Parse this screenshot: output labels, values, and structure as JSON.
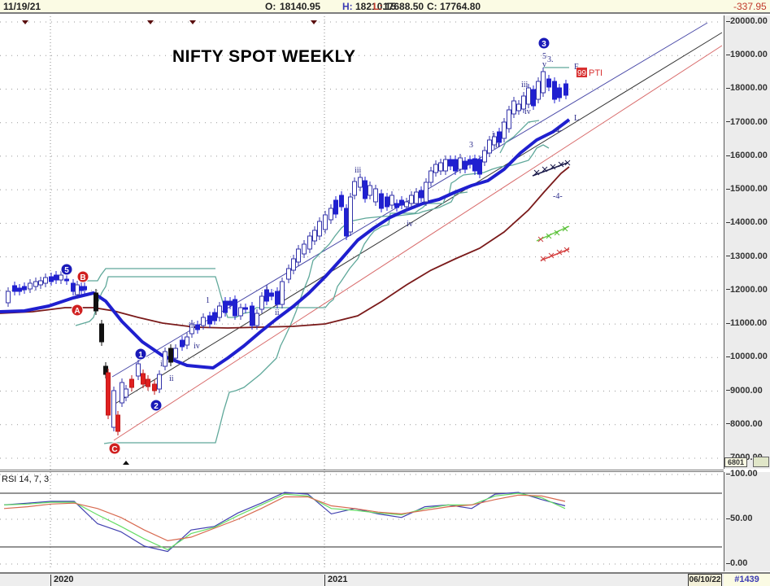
{
  "header": {
    "date": "11/19/21",
    "open_label": "O:",
    "open": "18140.95",
    "high_label": "H:",
    "high": "18210.15",
    "low_label": "L:",
    "low": "17688.50",
    "close_label": "C:",
    "close": "17764.80",
    "change": "-337.95"
  },
  "footer": {
    "years": [
      {
        "label": "2020",
        "x": 62
      },
      {
        "label": "2021",
        "x": 399
      }
    ],
    "end_date": "06/10/22",
    "bar_count": "#1439"
  },
  "price_axis": {
    "ticks": [
      "20000.00",
      "19000.00",
      "18000.00",
      "17000.00",
      "16000.00",
      "15000.00",
      "14000.00",
      "13000.00",
      "12000.00",
      "11000.00",
      "10000.00",
      "9000.00",
      "8000.00",
      "7000.00"
    ],
    "last_value_box": "6801"
  },
  "rsi_axis": {
    "ticks": [
      "100.00",
      "50.00",
      "0.00"
    ]
  },
  "rsi_panel": {
    "label": "RSI 14, 7, 3"
  },
  "colors": {
    "up_candle": "#ffffff",
    "down_candle_blue": "#2020d0",
    "down_candle_red": "#e02020",
    "ma_fast": "#1f1fcf",
    "ma_slow": "#7a1a1a",
    "envelope": "#5fa89a",
    "channel_upper": "#4a4aa8",
    "channel_mid": "#333333",
    "channel_lower": "#d86a6a",
    "rsi_blue": "#4040b0",
    "rsi_green": "#66dd66",
    "rsi_red": "#d86a50",
    "wave_badge_blue": "#1a1ab8",
    "wave_badge_red": "#d02020"
  },
  "chart_data": {
    "type": "candlestick",
    "title": "NIFTY SPOT WEEKLY",
    "xlabel": "",
    "ylabel": "",
    "ylim": [
      7000,
      20000
    ],
    "x_tick_labels": [
      "2020",
      "2021"
    ],
    "y_ticks": [
      7000,
      8000,
      9000,
      10000,
      11000,
      12000,
      13000,
      14000,
      15000,
      16000,
      17000,
      18000,
      19000,
      20000
    ],
    "grid": true,
    "last_bar": {
      "date": "11/19/21",
      "open": 18140.95,
      "high": 18210.15,
      "low": 17688.5,
      "close": 17764.8,
      "change": -337.95
    },
    "price_path_approx": [
      {
        "x": "2019-Q4",
        "close": 11900
      },
      {
        "x": "2020-01",
        "close": 12350
      },
      {
        "x": "2020-02",
        "close": 11200
      },
      {
        "x": "2020-03",
        "close": 7600
      },
      {
        "x": "2020-04",
        "close": 9300
      },
      {
        "x": "2020-06",
        "close": 10300
      },
      {
        "x": "2020-08",
        "close": 11300
      },
      {
        "x": "2020-10",
        "close": 11900
      },
      {
        "x": "2020-12",
        "close": 13900
      },
      {
        "x": "2021-02",
        "close": 15200
      },
      {
        "x": "2021-04",
        "close": 14600
      },
      {
        "x": "2021-06",
        "close": 15700
      },
      {
        "x": "2021-08",
        "close": 16500
      },
      {
        "x": "2021-10",
        "close": 18500
      },
      {
        "x": "2021-11",
        "close": 17765
      }
    ],
    "indicators": [
      {
        "name": "Moving average (fast, blue)",
        "last_value_approx": 17150
      },
      {
        "name": "Moving average (slow, maroon)",
        "last_value_approx": 15700
      },
      {
        "name": "Envelope / stop line (teal)"
      },
      {
        "name": "Channel upper/mid/lower trendlines"
      }
    ],
    "annotations": [
      "5",
      "B",
      "A",
      "C",
      "1",
      "2",
      "3",
      "i",
      "ii",
      "iii",
      "iv",
      "v",
      "-4-",
      "99 PTI",
      "F",
      "L"
    ],
    "rsi": {
      "label": "RSI 14, 7, 3",
      "ylim": [
        0,
        100
      ],
      "y_ticks": [
        0,
        50,
        100
      ],
      "bands": [
        20,
        80
      ],
      "series": [
        {
          "name": "RSI 14",
          "color": "blue",
          "values_approx": [
            66,
            68,
            70,
            70,
            45,
            36,
            20,
            14,
            38,
            42,
            57,
            68,
            80,
            78,
            56,
            62,
            56,
            52,
            64,
            66,
            62,
            78,
            80,
            72,
            65
          ]
        },
        {
          "name": "RSI 7",
          "color": "green",
          "values_approx": [
            66,
            67,
            69,
            69,
            55,
            42,
            28,
            16,
            34,
            41,
            54,
            66,
            78,
            76,
            62,
            60,
            57,
            55,
            62,
            66,
            66,
            76,
            79,
            74,
            62
          ]
        },
        {
          "name": "RSI 3",
          "color": "red",
          "values_approx": [
            62,
            64,
            67,
            68,
            62,
            52,
            38,
            26,
            30,
            40,
            50,
            62,
            75,
            75,
            65,
            62,
            58,
            56,
            60,
            64,
            66,
            72,
            77,
            76,
            70
          ]
        }
      ]
    }
  }
}
